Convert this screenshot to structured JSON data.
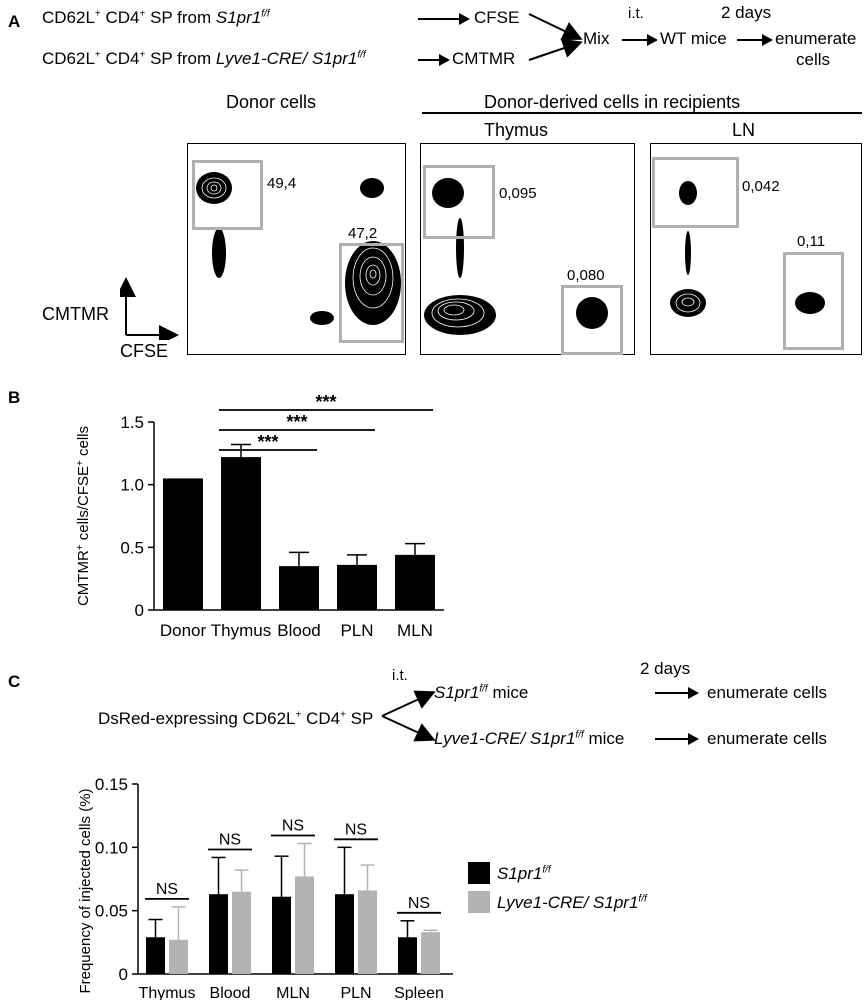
{
  "panelA": {
    "letter": "A",
    "flow": {
      "row1_pre": "CD62L",
      "row1_mid": " CD4",
      "row1_post": " SP from ",
      "row1_strain": "S1pr1",
      "row1_strain_sup": "f/f",
      "row1_dye": "CFSE",
      "row2_pre": "CD62L",
      "row2_mid": " CD4",
      "row2_post": " SP from ",
      "row2_strain": "Lyve1-CRE/ S1pr1",
      "row2_strain_sup": "f/f",
      "row2_dye": "CMTMR",
      "plus_sup": "+",
      "mix": "Mix",
      "route": "i.t.",
      "wt_mice": "WT mice",
      "duration": "2 days",
      "result_line1": "enumerate",
      "result_line2": "cells"
    },
    "headers": {
      "donor": "Donor cells",
      "recipients": "Donor-derived cells in recipients",
      "thymus": "Thymus",
      "ln": "LN"
    },
    "axes": {
      "y": "CMTMR",
      "x": "CFSE"
    },
    "gates": {
      "donor_cmtmr": "49,4",
      "donor_cfse": "47,2",
      "thymus_cmtmr": "0,095",
      "thymus_cfse": "0,080",
      "ln_cmtmr": "0,042",
      "ln_cfse": "0,11"
    }
  },
  "panelB": {
    "letter": "B",
    "significance": "***"
  },
  "panelC": {
    "letter": "C",
    "flow": {
      "source_pre": "DsRed-expressing CD62L",
      "source_mid": " CD4",
      "source_post": " SP",
      "plus_sup": "+",
      "route": "i.t.",
      "duration": "2 days",
      "recipient1_strain": "S1pr1",
      "recipient1_sup": "f/f",
      "recipient1_post": " mice",
      "recipient2_strain": "Lyve1-CRE/ S1pr1",
      "recipient2_sup": "f/f",
      "recipient2_post": " mice",
      "result1": "enumerate cells",
      "result2": "enumerate cells"
    },
    "legend": {
      "s1_strain": "S1pr1",
      "s1_sup": "f/f",
      "s2_strain": "Lyve1-CRE/ S1pr1",
      "s2_sup": "f/f"
    },
    "ns_label": "NS"
  },
  "chart_data": [
    {
      "type": "bar",
      "panel": "B",
      "categories": [
        "Donor",
        "Thymus",
        "Blood",
        "PLN",
        "MLN"
      ],
      "values": [
        1.05,
        1.22,
        0.35,
        0.36,
        0.44
      ],
      "errors": [
        0,
        0.1,
        0.11,
        0.08,
        0.09
      ],
      "ylabel_pre": "CMTMR",
      "ylabel_mid": " cells/CFSE",
      "ylabel_post": " cells",
      "ylabel_sup": "+",
      "ylim": [
        0,
        1.5
      ],
      "yticks": [
        "0",
        "0.5",
        "1.0",
        "1.5"
      ],
      "ytick_values": [
        0,
        0.5,
        1.0,
        1.5
      ],
      "color": "#000000",
      "comparisons": [
        {
          "from": "Thymus",
          "to": "Blood",
          "label": "***"
        },
        {
          "from": "Thymus",
          "to": "PLN",
          "label": "***"
        },
        {
          "from": "Thymus",
          "to": "MLN",
          "label": "***"
        }
      ],
      "legend": "none",
      "grid": false
    },
    {
      "type": "bar",
      "panel": "C",
      "categories": [
        "Thymus",
        "Blood",
        "MLN",
        "PLN",
        "Spleen"
      ],
      "series": [
        {
          "name": "S1pr1 f/f",
          "color": "#000000",
          "values": [
            0.029,
            0.063,
            0.061,
            0.063,
            0.029
          ],
          "errors": [
            0.014,
            0.029,
            0.032,
            0.037,
            0.013
          ]
        },
        {
          "name": "Lyve1-CRE/ S1pr1 f/f",
          "color": "#b3b3b3",
          "values": [
            0.027,
            0.065,
            0.077,
            0.066,
            0.033
          ],
          "errors": [
            0.026,
            0.017,
            0.026,
            0.02,
            0.0015
          ]
        }
      ],
      "ylabel": "Frequency of injected cells (%)",
      "ylim": [
        0,
        0.15
      ],
      "yticks": [
        "0",
        "0.05",
        "0.10",
        "0.15"
      ],
      "ytick_values": [
        0,
        0.05,
        0.1,
        0.15
      ],
      "comparisons_label": "NS",
      "legend": "right",
      "grid": false
    }
  ]
}
